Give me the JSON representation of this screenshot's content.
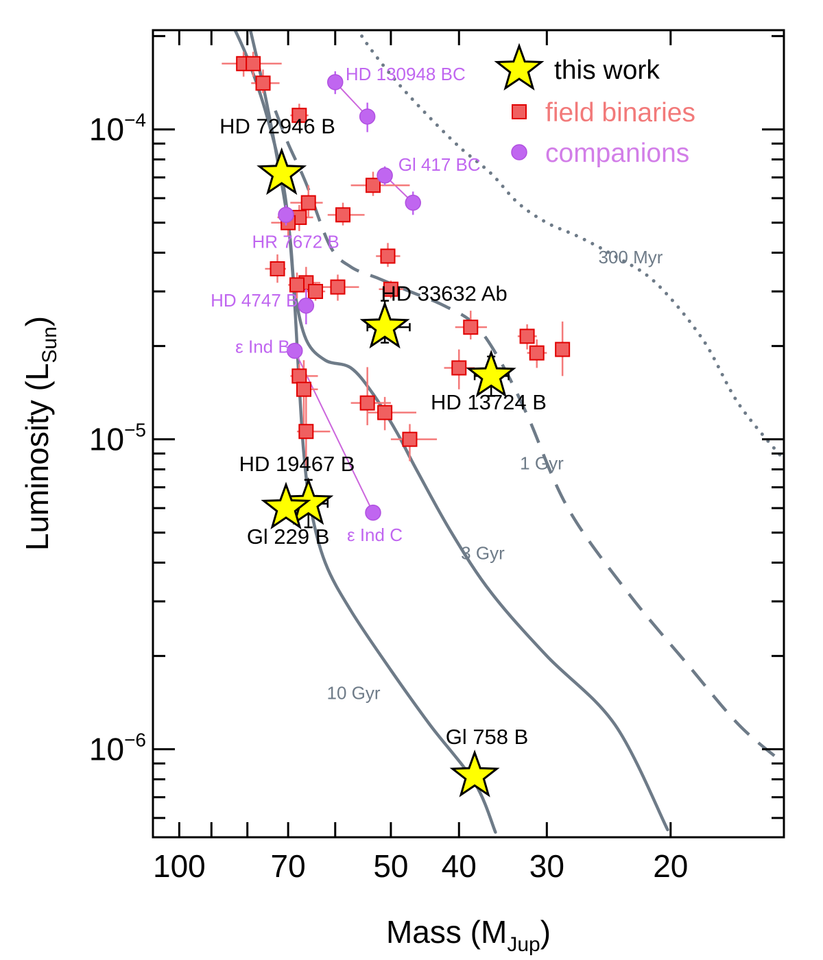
{
  "chart_data": {
    "type": "scatter",
    "title": "",
    "xlabel": "Mass (M",
    "xlabel_sub": "Jup",
    "xlabel_close": ")",
    "ylabel": "Luminosity (L",
    "ylabel_sub": "Sun",
    "ylabel_close": ")",
    "x_scale": "log",
    "y_scale": "log",
    "xlim": [
      109,
      13.8
    ],
    "ylim": [
      5.2e-07,
      0.000209
    ],
    "x_ticks": [
      {
        "value": 100,
        "label": "100"
      },
      {
        "value": 70,
        "label": "70"
      },
      {
        "value": 50,
        "label": "50"
      },
      {
        "value": 40,
        "label": "40"
      },
      {
        "value": 30,
        "label": "30"
      },
      {
        "value": 20,
        "label": "20"
      }
    ],
    "x_minor_ticks": [
      90,
      80,
      60
    ],
    "y_ticks": [
      {
        "value": 1e-06,
        "base": "10",
        "exp": "−6"
      },
      {
        "value": 1e-05,
        "base": "10",
        "exp": "−5"
      },
      {
        "value": 0.0001,
        "base": "10",
        "exp": "−4"
      }
    ],
    "y_minor_ticks": [
      6e-07,
      7e-07,
      8e-07,
      9e-07,
      2e-06,
      3e-06,
      4e-06,
      5e-06,
      6e-06,
      7e-06,
      8e-06,
      9e-06,
      2e-05,
      3e-05,
      4e-05,
      5e-05,
      6e-05,
      7e-05,
      8e-05,
      9e-05,
      0.0002
    ],
    "colors": {
      "axis": "#000000",
      "isochrone": "#6e7b88",
      "field_fill": "#f06060",
      "field_edge": "#e00000",
      "field_err": "#f47a7a",
      "companion": "#c066f0",
      "companion_line": "#cc66dd",
      "star_fill": "#ffff00",
      "star_edge": "#000000"
    },
    "legend": {
      "position": "top-right",
      "entries": [
        {
          "label": "this work",
          "marker": "star",
          "color": "#000000"
        },
        {
          "label": "field binaries",
          "marker": "square",
          "color": "#f27a7a"
        },
        {
          "label": "companions",
          "marker": "circle",
          "color": "#d27ee8"
        }
      ]
    },
    "isochrones": [
      {
        "name": "10 Gyr",
        "label": "10 Gyr",
        "style": "solid",
        "label_at": [
          56.5,
          1.45e-06
        ],
        "points": [
          [
            85,
            0.00023
          ],
          [
            80,
            0.00017
          ],
          [
            75,
            0.00011
          ],
          [
            71,
            6.5e-05
          ],
          [
            69,
            3.5e-05
          ],
          [
            67.5,
            1.5e-05
          ],
          [
            66.5,
            9e-06
          ],
          [
            65,
            6e-06
          ],
          [
            62,
            4e-06
          ],
          [
            57,
            2.8e-06
          ],
          [
            50,
            1.8e-06
          ],
          [
            44,
            1.2e-06
          ],
          [
            38,
            7.8e-07
          ],
          [
            35.5,
            5.4e-07
          ]
        ]
      },
      {
        "name": "3 Gyr",
        "label": "3 Gyr",
        "style": "solid",
        "label_at": [
          37,
          4.1e-06
        ],
        "points": [
          [
            80,
            0.00023
          ],
          [
            75,
            0.00012
          ],
          [
            70,
            5e-05
          ],
          [
            68.5,
            3e-05
          ],
          [
            66,
            2.1e-05
          ],
          [
            62,
            1.8e-05
          ],
          [
            57,
            1.7e-05
          ],
          [
            53,
            1.4e-05
          ],
          [
            49,
            1.05e-05
          ],
          [
            46,
            8e-06
          ],
          [
            41,
            5e-06
          ],
          [
            36,
            3.2e-06
          ],
          [
            30,
            2e-06
          ],
          [
            24,
            1.2e-06
          ],
          [
            20.2,
            5.5e-07
          ]
        ]
      },
      {
        "name": "1 Gyr",
        "label": "1 Gyr",
        "style": "dashed",
        "label_at": [
          30.5,
          8e-06
        ],
        "points": [
          [
            73,
            0.000115
          ],
          [
            70,
            9e-05
          ],
          [
            66,
            6.7e-05
          ],
          [
            61,
            4.2e-05
          ],
          [
            57,
            3.6e-05
          ],
          [
            52,
            3.3e-05
          ],
          [
            47,
            3e-05
          ],
          [
            42,
            2.7e-05
          ],
          [
            38,
            2.35e-05
          ],
          [
            35,
            1.8e-05
          ],
          [
            32,
            1.2e-05
          ],
          [
            28,
            6e-06
          ],
          [
            23,
            3.2e-06
          ],
          [
            19,
            1.9e-06
          ],
          [
            16,
            1.2e-06
          ],
          [
            13.8,
            9e-07
          ]
        ]
      },
      {
        "name": "300 Myr",
        "label": "300 Myr",
        "style": "dotted",
        "label_at": [
          22.8,
          3.7e-05
        ],
        "points": [
          [
            57,
            0.00024
          ],
          [
            55,
            0.0002
          ],
          [
            50,
            0.00015
          ],
          [
            45,
            0.000115
          ],
          [
            40,
            8.8e-05
          ],
          [
            36,
            7.2e-05
          ],
          [
            33,
            5.8e-05
          ],
          [
            30,
            5e-05
          ],
          [
            27,
            4.5e-05
          ],
          [
            24,
            3.9e-05
          ],
          [
            21,
            3.2e-05
          ],
          [
            18,
            2.1e-05
          ],
          [
            16,
            1.3e-05
          ],
          [
            13.8,
            8.6e-06
          ]
        ]
      }
    ],
    "field_binaries": [
      {
        "x": 81,
        "y": 0.000163,
        "xerr": [
          6,
          4
        ],
        "yerr": [
          1.5e-05,
          1.5e-05
        ]
      },
      {
        "x": 78.5,
        "y": 0.000163,
        "xerr": [
          4,
          7
        ],
        "yerr": [
          1.5e-05,
          1.5e-05
        ]
      },
      {
        "x": 76,
        "y": 0.000141,
        "xerr": [
          3,
          4
        ],
        "yerr": [
          1e-05,
          1.5e-05
        ]
      },
      {
        "x": 67.5,
        "y": 0.000111,
        "xerr": [
          2,
          2
        ],
        "yerr": [
          8e-06,
          1e-05
        ]
      },
      {
        "x": 65.5,
        "y": 5.8e-05,
        "xerr": [
          4,
          3
        ],
        "yerr": [
          6e-06,
          8e-06
        ]
      },
      {
        "x": 67.5,
        "y": 5.2e-05,
        "xerr": [
          5,
          3
        ],
        "yerr": [
          5e-06,
          5e-06
        ]
      },
      {
        "x": 70,
        "y": 5e-05,
        "xerr": [
          4,
          3
        ],
        "yerr": [
          5e-06,
          5e-06
        ]
      },
      {
        "x": 53,
        "y": 6.6e-05,
        "xerr": [
          4,
          6
        ],
        "yerr": [
          5e-06,
          7e-06
        ]
      },
      {
        "x": 58.5,
        "y": 5.3e-05,
        "xerr": [
          3,
          4
        ],
        "yerr": [
          4e-06,
          5e-06
        ]
      },
      {
        "x": 72.5,
        "y": 3.55e-05,
        "xerr": [
          3,
          2
        ],
        "yerr": [
          3.5e-06,
          4e-06
        ]
      },
      {
        "x": 66,
        "y": 3.2e-05,
        "xerr": [
          2,
          3
        ],
        "yerr": [
          3e-06,
          4e-06
        ]
      },
      {
        "x": 68,
        "y": 3.15e-05,
        "xerr": [
          2,
          3
        ],
        "yerr": [
          3e-06,
          3e-06
        ]
      },
      {
        "x": 64,
        "y": 3e-05,
        "xerr": [
          3,
          2
        ],
        "yerr": [
          2e-06,
          2e-06
        ]
      },
      {
        "x": 59.5,
        "y": 3.1e-05,
        "xerr": [
          3,
          4
        ],
        "yerr": [
          3e-06,
          3e-06
        ]
      },
      {
        "x": 50.5,
        "y": 3.9e-05,
        "xerr": [
          2,
          2
        ],
        "yerr": [
          3e-06,
          4e-06
        ]
      },
      {
        "x": 50,
        "y": 3.05e-05,
        "xerr": [
          2,
          2
        ],
        "yerr": [
          2e-06,
          2e-06
        ]
      },
      {
        "x": 38.5,
        "y": 2.3e-05,
        "xerr": [
          2,
          2
        ],
        "yerr": [
          2e-06,
          3e-06
        ]
      },
      {
        "x": 32,
        "y": 2.15e-05,
        "xerr": [
          1,
          1
        ],
        "yerr": [
          2e-06,
          2e-06
        ]
      },
      {
        "x": 31,
        "y": 1.9e-05,
        "xerr": [
          1,
          1
        ],
        "yerr": [
          2e-06,
          2e-06
        ]
      },
      {
        "x": 28.5,
        "y": 1.95e-05,
        "xerr": [
          0.5,
          0.5
        ],
        "yerr": [
          3.5e-06,
          4.5e-06
        ]
      },
      {
        "x": 40,
        "y": 1.7e-05,
        "xerr": [
          2,
          2
        ],
        "yerr": [
          2.5e-06,
          2.5e-06
        ]
      },
      {
        "x": 67.5,
        "y": 1.6e-05,
        "xerr": [
          2,
          4
        ],
        "yerr": [
          1.5e-06,
          1.5e-06
        ]
      },
      {
        "x": 66.5,
        "y": 1.45e-05,
        "xerr": [
          1,
          3
        ],
        "yerr": [
          3.5e-06,
          3.5e-06
        ]
      },
      {
        "x": 66,
        "y": 1.06e-05,
        "xerr": [
          2,
          5
        ],
        "yerr": [
          2.5e-06,
          3.5e-06
        ]
      },
      {
        "x": 54,
        "y": 1.31e-05,
        "xerr": [
          3,
          4
        ],
        "yerr": [
          2e-06,
          4e-06
        ]
      },
      {
        "x": 51,
        "y": 1.22e-05,
        "xerr": [
          3,
          5
        ],
        "yerr": [
          1.5e-06,
          1.5e-06
        ]
      },
      {
        "x": 47,
        "y": 1e-05,
        "xerr": [
          3,
          4
        ],
        "yerr": [
          1.5e-06,
          1.2e-06
        ]
      }
    ],
    "companions": [
      {
        "name": "HD 130948 BC",
        "label": "HD 130948 BC",
        "points": [
          [
            60,
            0.000142
          ],
          [
            54,
            0.00011
          ]
        ],
        "yerr": [
          1.2e-05,
          1.2e-05
        ],
        "label_at": [
          58,
          0.000144
        ],
        "label_anchor": "start"
      },
      {
        "name": "Gl 417 BC",
        "label": "Gl 417 BC",
        "points": [
          [
            51,
            7.1e-05
          ],
          [
            46.5,
            5.8e-05
          ]
        ],
        "yerr": [
          5e-06,
          5e-06
        ],
        "label_at": [
          48.8,
          7.35e-05
        ],
        "label_anchor": "start"
      },
      {
        "name": "HR 7672 B",
        "label": "HR 7672 B",
        "points": [
          [
            70.5,
            5.3e-05
          ]
        ],
        "yerr": [
          4e-06,
          4e-06
        ],
        "label_at": [
          68.3,
          4.15e-05
        ],
        "label_anchor": "middle"
      },
      {
        "name": "HD 4747 B",
        "label": "HD 4747 B",
        "points": [
          [
            66,
            2.7e-05
          ]
        ],
        "yerr": [
          3.5e-06,
          3.5e-06
        ],
        "label_at": [
          67.8,
          2.68e-05
        ],
        "label_anchor": "end"
      },
      {
        "name": "epsilon Ind BC",
        "points": [
          [
            68.5,
            1.93e-05
          ],
          [
            53,
            5.8e-06
          ]
        ],
        "yerr": [
          0,
          0
        ]
      }
    ],
    "companion_labels": [
      {
        "label": "ε Ind B",
        "at": [
          69.6,
          1.9e-05
        ],
        "anchor": "end"
      },
      {
        "label": "ε Ind C",
        "at": [
          52.7,
          4.7e-06
        ],
        "anchor": "middle"
      }
    ],
    "this_work": [
      {
        "name": "HD 72946 B",
        "label": "HD 72946 B",
        "x": 71.5,
        "y": 7.2e-05,
        "xerr": [
          0,
          0
        ],
        "yerr": [
          0,
          0
        ],
        "label_at": [
          72.5,
          9.7e-05
        ],
        "label_anchor": "middle"
      },
      {
        "name": "HD 33632 Ab",
        "label": "HD 33632 Ab",
        "x": 51,
        "y": 2.3e-05,
        "xerr": [
          3,
          4
        ],
        "yerr": [
          2.5e-06,
          5e-06
        ],
        "label_at": [
          42,
          2.8e-05
        ],
        "label_anchor": "middle"
      },
      {
        "name": "HD 13724 B",
        "label": "HD 13724 B",
        "x": 36,
        "y": 1.6e-05,
        "xerr": [
          2,
          2
        ],
        "yerr": [
          2.2e-06,
          2.5e-06
        ],
        "label_at": [
          36.3,
          1.25e-05
        ],
        "label_anchor": "middle"
      },
      {
        "name": "HD 19467 B",
        "label": "HD 19467 B",
        "x": 65.5,
        "y": 6.2e-06,
        "xerr": [
          2.5,
          4
        ],
        "yerr": [
          1e-06,
          1.2e-06
        ],
        "label_at": [
          68,
          7.9e-06
        ],
        "label_anchor": "middle"
      },
      {
        "name": "Gl 229 B",
        "label": "Gl 229 B",
        "x": 70.5,
        "y": 6e-06,
        "xerr": [
          0,
          0
        ],
        "yerr": [
          0,
          0
        ],
        "label_at": [
          70,
          4.6e-06
        ],
        "label_anchor": "middle"
      },
      {
        "name": "Gl 758 B",
        "label": "Gl 758 B",
        "x": 38,
        "y": 8.2e-07,
        "xerr": [
          0,
          0
        ],
        "yerr": [
          0,
          0
        ],
        "label_at": [
          36.5,
          1.04e-06
        ],
        "label_anchor": "middle"
      }
    ]
  }
}
